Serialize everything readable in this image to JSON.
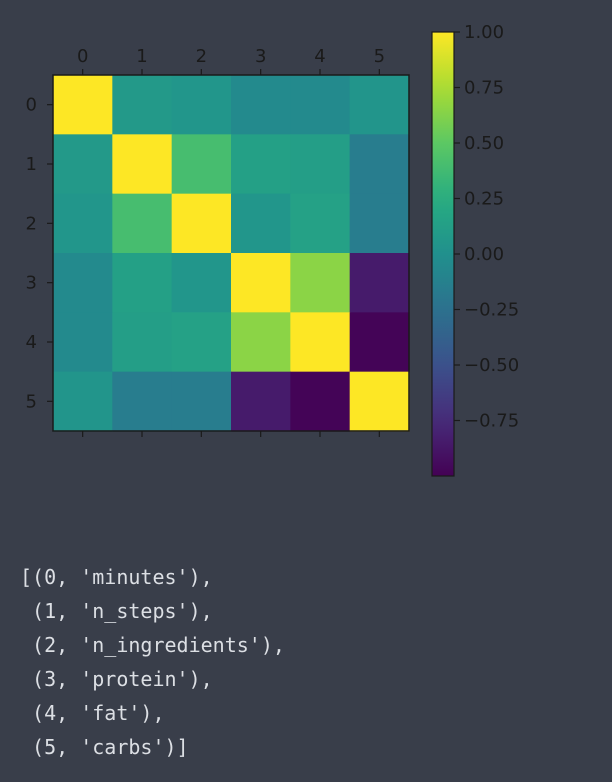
{
  "chart_data": {
    "type": "heatmap",
    "x_ticks": [
      "0",
      "1",
      "2",
      "3",
      "4",
      "5"
    ],
    "y_ticks": [
      "0",
      "1",
      "2",
      "3",
      "4",
      "5"
    ],
    "matrix": [
      [
        1.0,
        0.08,
        0.05,
        -0.05,
        -0.05,
        0.04
      ],
      [
        0.08,
        1.0,
        0.4,
        0.14,
        0.12,
        -0.15
      ],
      [
        0.05,
        0.4,
        1.0,
        0.05,
        0.15,
        -0.15
      ],
      [
        -0.05,
        0.14,
        0.05,
        1.0,
        0.65,
        -0.85
      ],
      [
        -0.05,
        0.12,
        0.15,
        0.65,
        1.0,
        -0.98
      ],
      [
        0.04,
        -0.15,
        -0.15,
        -0.85,
        -0.98,
        1.0
      ]
    ],
    "colormap": "viridis",
    "colorbar": {
      "min": -1.0,
      "max": 1.0,
      "ticks": [
        1.0,
        0.75,
        0.5,
        0.25,
        0.0,
        -0.25,
        -0.5,
        -0.75
      ],
      "tick_labels": [
        "1.00",
        "0.75",
        "0.50",
        "0.25",
        "0.00",
        "−0.25",
        "−0.50",
        "−0.75"
      ]
    },
    "title": "",
    "xlabel": "",
    "ylabel": ""
  },
  "output": {
    "lines": [
      "[(0, 'minutes'),",
      " (1, 'n_steps'),",
      " (2, 'n_ingredients'),",
      " (3, 'protein'),",
      " (4, 'fat'),",
      " (5, 'carbs')]"
    ]
  }
}
